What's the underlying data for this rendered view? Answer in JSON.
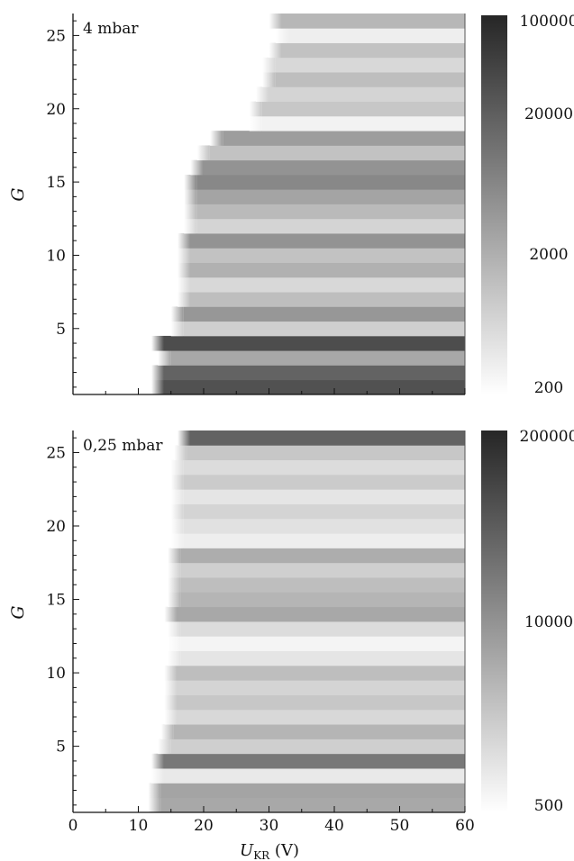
{
  "chart_data": [
    {
      "type": "heatmap",
      "panel_label": "4 mbar",
      "xlabel": "",
      "ylabel": "G",
      "xlim": [
        0,
        60
      ],
      "ylim": [
        0.5,
        26.5
      ],
      "y_ticks": [
        5,
        10,
        15,
        20,
        25
      ],
      "colorbar": {
        "scale": "log",
        "range": [
          200,
          100000
        ],
        "ticks": [
          "100000",
          "20000",
          "2000",
          "200"
        ],
        "tick_values": [
          100000,
          20000,
          2000,
          200
        ]
      },
      "rows": [
        {
          "g": 1,
          "x_start": 12,
          "level": 0.8
        },
        {
          "g": 2,
          "x_start": 12,
          "level": 0.72
        },
        {
          "g": 3,
          "x_start": 13,
          "level": 0.4
        },
        {
          "g": 4,
          "x_start": 12,
          "level": 0.82
        },
        {
          "g": 5,
          "x_start": 15,
          "level": 0.22
        },
        {
          "g": 6,
          "x_start": 15,
          "level": 0.48
        },
        {
          "g": 7,
          "x_start": 16,
          "level": 0.3
        },
        {
          "g": 8,
          "x_start": 16,
          "level": 0.18
        },
        {
          "g": 9,
          "x_start": 16,
          "level": 0.36
        },
        {
          "g": 10,
          "x_start": 16,
          "level": 0.28
        },
        {
          "g": 11,
          "x_start": 16,
          "level": 0.5
        },
        {
          "g": 12,
          "x_start": 17,
          "level": 0.2
        },
        {
          "g": 13,
          "x_start": 17,
          "level": 0.32
        },
        {
          "g": 14,
          "x_start": 17,
          "level": 0.42
        },
        {
          "g": 15,
          "x_start": 17,
          "level": 0.55
        },
        {
          "g": 16,
          "x_start": 18,
          "level": 0.5
        },
        {
          "g": 17,
          "x_start": 19,
          "level": 0.28
        },
        {
          "g": 18,
          "x_start": 21,
          "level": 0.45
        },
        {
          "g": 19,
          "x_start": 27,
          "level": 0.06
        },
        {
          "g": 20,
          "x_start": 27,
          "level": 0.26
        },
        {
          "g": 21,
          "x_start": 28,
          "level": 0.2
        },
        {
          "g": 22,
          "x_start": 29,
          "level": 0.3
        },
        {
          "g": 23,
          "x_start": 29,
          "level": 0.18
        },
        {
          "g": 24,
          "x_start": 30,
          "level": 0.28
        },
        {
          "g": 25,
          "x_start": 31,
          "level": 0.08
        },
        {
          "g": 26,
          "x_start": 30,
          "level": 0.33
        }
      ]
    },
    {
      "type": "heatmap",
      "panel_label": "0,25 mbar",
      "xlabel": "U_KR (V)",
      "ylabel": "G",
      "xlim": [
        0,
        60
      ],
      "ylim": [
        0.5,
        26.5
      ],
      "x_ticks": [
        0,
        10,
        20,
        30,
        40,
        50,
        60
      ],
      "y_ticks": [
        5,
        10,
        15,
        20,
        25
      ],
      "colorbar": {
        "scale": "log",
        "range": [
          500,
          200000
        ],
        "ticks": [
          "200000",
          "10000",
          "500"
        ],
        "tick_values": [
          200000,
          10000,
          500
        ]
      },
      "rows": [
        {
          "g": 1,
          "x_start": 11.5,
          "level": 0.4
        },
        {
          "g": 2,
          "x_start": 11.5,
          "level": 0.42
        },
        {
          "g": 3,
          "x_start": 12,
          "level": 0.1
        },
        {
          "g": 4,
          "x_start": 12,
          "level": 0.62
        },
        {
          "g": 5,
          "x_start": 13,
          "level": 0.22
        },
        {
          "g": 6,
          "x_start": 13.5,
          "level": 0.34
        },
        {
          "g": 7,
          "x_start": 14,
          "level": 0.18
        },
        {
          "g": 8,
          "x_start": 14,
          "level": 0.26
        },
        {
          "g": 9,
          "x_start": 14,
          "level": 0.2
        },
        {
          "g": 10,
          "x_start": 14,
          "level": 0.3
        },
        {
          "g": 11,
          "x_start": 14.5,
          "level": 0.12
        },
        {
          "g": 12,
          "x_start": 14.5,
          "level": 0.05
        },
        {
          "g": 13,
          "x_start": 14.5,
          "level": 0.16
        },
        {
          "g": 14,
          "x_start": 14,
          "level": 0.4
        },
        {
          "g": 15,
          "x_start": 14.5,
          "level": 0.34
        },
        {
          "g": 16,
          "x_start": 14.5,
          "level": 0.3
        },
        {
          "g": 17,
          "x_start": 14.5,
          "level": 0.22
        },
        {
          "g": 18,
          "x_start": 14.5,
          "level": 0.38
        },
        {
          "g": 19,
          "x_start": 15,
          "level": 0.08
        },
        {
          "g": 20,
          "x_start": 15,
          "level": 0.14
        },
        {
          "g": 21,
          "x_start": 15,
          "level": 0.2
        },
        {
          "g": 22,
          "x_start": 15,
          "level": 0.12
        },
        {
          "g": 23,
          "x_start": 15,
          "level": 0.24
        },
        {
          "g": 24,
          "x_start": 15,
          "level": 0.16
        },
        {
          "g": 25,
          "x_start": 15.5,
          "level": 0.26
        },
        {
          "g": 26,
          "x_start": 16,
          "level": 0.72
        }
      ]
    }
  ]
}
